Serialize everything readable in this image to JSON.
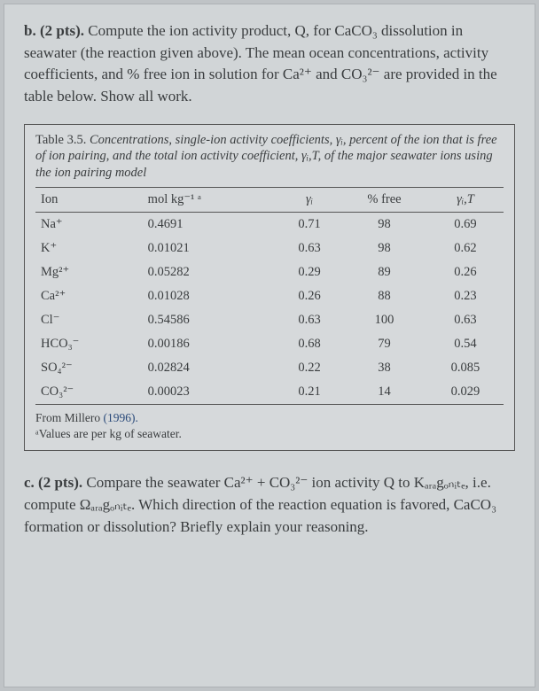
{
  "question_b": {
    "label": "b. (2 pts).",
    "text": " Compute the ion activity product, Q, for CaCO₃ dissolution in seawater (the reaction given above). The mean ocean concentrations, activity coefficients, and % free ion in solution for Ca²⁺ and CO₃²⁻ are provided in the table below. Show all work."
  },
  "table": {
    "caption_num": "Table 3.5.",
    "caption_rest": " Concentrations, single-ion activity coefficients, γᵢ, percent of the ion that is free of ion pairing, and the total ion activity coefficient, γᵢ,T, of the major seawater ions using the ion pairing model",
    "headers": {
      "ion": "Ion",
      "conc": "mol kg⁻¹ ᵃ",
      "gamma_i": "γᵢ",
      "pct_free": "% free",
      "gamma_it": "γᵢ,T"
    },
    "rows": [
      {
        "ion": "Na⁺",
        "conc": "0.4691",
        "gi": "0.71",
        "pf": "98",
        "git": "0.69"
      },
      {
        "ion": "K⁺",
        "conc": "0.01021",
        "gi": "0.63",
        "pf": "98",
        "git": "0.62"
      },
      {
        "ion": "Mg²⁺",
        "conc": "0.05282",
        "gi": "0.29",
        "pf": "89",
        "git": "0.26"
      },
      {
        "ion": "Ca²⁺",
        "conc": "0.01028",
        "gi": "0.26",
        "pf": "88",
        "git": "0.23"
      },
      {
        "ion": "Cl⁻",
        "conc": "0.54586",
        "gi": "0.63",
        "pf": "100",
        "git": "0.63"
      },
      {
        "ion": "HCO₃⁻",
        "conc": "0.00186",
        "gi": "0.68",
        "pf": "79",
        "git": "0.54"
      },
      {
        "ion": "SO₄²⁻",
        "conc": "0.02824",
        "gi": "0.22",
        "pf": "38",
        "git": "0.085"
      },
      {
        "ion": "CO₃²⁻",
        "conc": "0.00023",
        "gi": "0.21",
        "pf": "14",
        "git": "0.029"
      }
    ],
    "footnote_from": "From Millero ",
    "footnote_year": "(1996).",
    "footnote_a": "ᵃValues are per kg of seawater."
  },
  "question_c": {
    "label": "c. (2 pts).",
    "text": " Compare the seawater Ca²⁺ + CO₃²⁻ ion activity Q to Kₐᵣₐgₒₙᵢₜₑ, i.e. compute Ωₐᵣₐgₒₙᵢₜₑ. Which direction of the reaction equation is favored, CaCO₃ formation or dissolution? Briefly explain your reasoning."
  }
}
